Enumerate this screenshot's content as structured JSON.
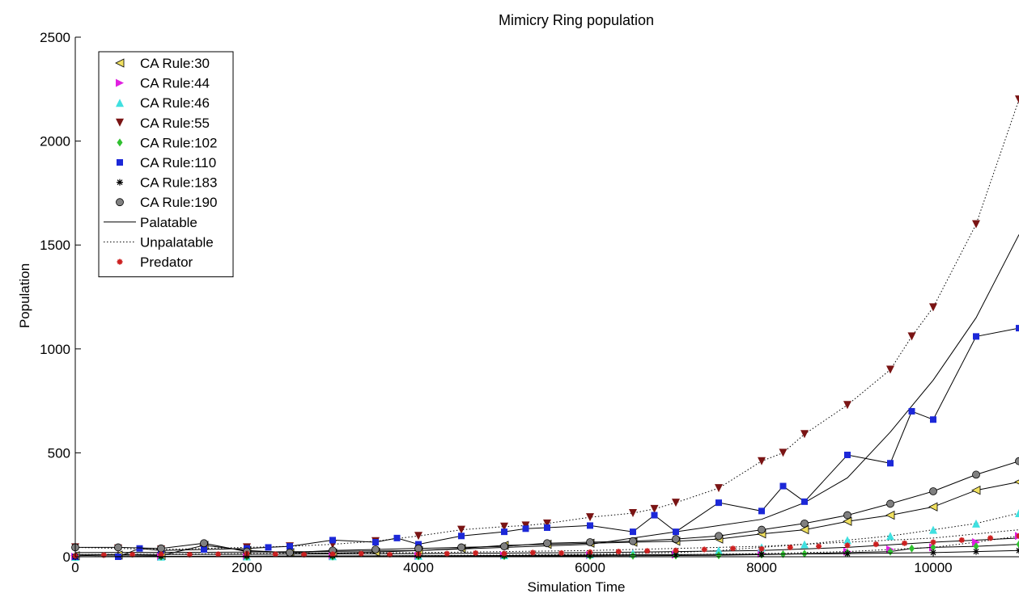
{
  "chart_data": {
    "type": "line",
    "title": "Mimicry Ring population",
    "xlabel": "Simulation Time",
    "ylabel": "Population",
    "xlim": [
      0,
      11000
    ],
    "ylim": [
      0,
      2500
    ],
    "xticks": [
      0,
      2000,
      4000,
      6000,
      8000,
      10000
    ],
    "yticks": [
      0,
      500,
      1000,
      1500,
      2000,
      2500
    ],
    "grid": false,
    "legend_position": "top-left",
    "series": [
      {
        "name": "CA Rule:30",
        "marker": "triangle-left",
        "color": "#f0e060",
        "line": "solid",
        "x": [
          0,
          500,
          1000,
          1500,
          2000,
          2500,
          3000,
          3500,
          4000,
          4500,
          5000,
          5500,
          6000,
          6500,
          7000,
          7500,
          8000,
          8500,
          9000,
          9500,
          10000,
          10500,
          11000
        ],
        "values": [
          5,
          8,
          6,
          55,
          30,
          20,
          18,
          22,
          30,
          40,
          55,
          60,
          65,
          70,
          75,
          85,
          110,
          130,
          170,
          200,
          240,
          320,
          360
        ]
      },
      {
        "name": "CA Rule:44",
        "marker": "triangle-right",
        "color": "#e020e0",
        "line": "dotted",
        "x": [
          0,
          1000,
          2000,
          3000,
          4000,
          5000,
          6000,
          7000,
          8000,
          9000,
          9500,
          10000,
          10500,
          11000
        ],
        "values": [
          0,
          0,
          2,
          3,
          4,
          6,
          8,
          10,
          15,
          25,
          35,
          45,
          70,
          100
        ]
      },
      {
        "name": "CA Rule:46",
        "marker": "triangle-up",
        "color": "#40e0e0",
        "line": "dotted",
        "x": [
          0,
          1000,
          2000,
          3000,
          4000,
          5000,
          6000,
          6500,
          7000,
          7500,
          8000,
          8500,
          9000,
          9500,
          10000,
          10500,
          11000
        ],
        "values": [
          0,
          1,
          2,
          3,
          5,
          8,
          12,
          16,
          20,
          30,
          45,
          60,
          80,
          100,
          130,
          160,
          210
        ]
      },
      {
        "name": "CA Rule:55",
        "marker": "triangle-down",
        "color": "#7a1414",
        "line": "dotted",
        "x": [
          0,
          500,
          1000,
          1500,
          2000,
          2500,
          3000,
          3500,
          4000,
          4500,
          5000,
          5250,
          5500,
          6000,
          6500,
          6750,
          7000,
          7500,
          8000,
          8250,
          8500,
          9000,
          9500,
          9750,
          10000,
          10500,
          11000
        ],
        "values": [
          45,
          40,
          35,
          40,
          45,
          50,
          60,
          75,
          100,
          130,
          145,
          150,
          160,
          190,
          210,
          230,
          260,
          330,
          460,
          500,
          590,
          730,
          900,
          1060,
          1200,
          1600,
          2200
        ]
      },
      {
        "name": "CA Rule:102",
        "marker": "diamond",
        "color": "#30c030",
        "line": "solid",
        "x": [
          0,
          1000,
          2000,
          3000,
          4000,
          5000,
          6000,
          6500,
          7000,
          7500,
          8000,
          8250,
          8500,
          9000,
          9500,
          9750,
          10000,
          10500,
          11000
        ],
        "values": [
          0,
          1,
          0,
          1,
          2,
          3,
          4,
          5,
          6,
          7,
          10,
          12,
          15,
          20,
          25,
          40,
          45,
          50,
          60
        ]
      },
      {
        "name": "CA Rule:110",
        "marker": "square",
        "color": "#1c28d8",
        "line": "solid",
        "x": [
          0,
          500,
          750,
          1000,
          1500,
          2000,
          2250,
          2500,
          3000,
          3500,
          3750,
          4000,
          4500,
          5000,
          5250,
          5500,
          6000,
          6500,
          6750,
          7000,
          7500,
          8000,
          8250,
          8500,
          9000,
          9500,
          9750,
          10000,
          10500,
          11000
        ],
        "values": [
          0,
          0,
          40,
          30,
          35,
          40,
          45,
          50,
          80,
          70,
          90,
          60,
          100,
          120,
          135,
          140,
          150,
          120,
          200,
          120,
          260,
          220,
          340,
          265,
          490,
          450,
          700,
          660,
          1060,
          1100
        ]
      },
      {
        "name": "CA Rule:183",
        "marker": "asterisk",
        "color": "#000000",
        "line": "solid",
        "x": [
          0,
          1000,
          2000,
          3000,
          4000,
          5000,
          6000,
          7000,
          8000,
          9000,
          10000,
          10500,
          11000
        ],
        "values": [
          0,
          2,
          3,
          4,
          5,
          6,
          8,
          10,
          12,
          15,
          20,
          25,
          30
        ]
      },
      {
        "name": "CA Rule:190",
        "marker": "circle",
        "color": "#808080",
        "line": "solid",
        "x": [
          0,
          500,
          1000,
          1500,
          2000,
          2500,
          3000,
          3500,
          4000,
          4500,
          5000,
          5500,
          6000,
          6500,
          7000,
          7500,
          8000,
          8500,
          9000,
          9500,
          10000,
          10500,
          11000
        ],
        "values": [
          45,
          45,
          40,
          65,
          25,
          20,
          30,
          35,
          40,
          45,
          50,
          65,
          70,
          75,
          85,
          100,
          130,
          160,
          200,
          255,
          315,
          395,
          460
        ]
      }
    ],
    "legend": [
      {
        "label": "CA Rule:30",
        "kind": "marker",
        "marker": "triangle-left",
        "color": "#f0e060"
      },
      {
        "label": "CA Rule:44",
        "kind": "marker",
        "marker": "triangle-right",
        "color": "#e020e0"
      },
      {
        "label": "CA Rule:46",
        "kind": "marker",
        "marker": "triangle-up",
        "color": "#40e0e0"
      },
      {
        "label": "CA Rule:55",
        "kind": "marker",
        "marker": "triangle-down",
        "color": "#7a1414"
      },
      {
        "label": "CA Rule:102",
        "kind": "marker",
        "marker": "diamond",
        "color": "#30c030"
      },
      {
        "label": "CA Rule:110",
        "kind": "marker",
        "marker": "square",
        "color": "#1c28d8"
      },
      {
        "label": "CA Rule:183",
        "kind": "marker",
        "marker": "asterisk",
        "color": "#000000"
      },
      {
        "label": "CA Rule:190",
        "kind": "marker",
        "marker": "circle",
        "color": "#808080"
      },
      {
        "label": "Palatable",
        "kind": "line",
        "line": "solid",
        "color": "#000000"
      },
      {
        "label": "Unpalatable",
        "kind": "line",
        "line": "dotted",
        "color": "#000000"
      },
      {
        "label": "Predator",
        "kind": "marker",
        "marker": "star",
        "color": "#cc2020"
      }
    ],
    "predator": {
      "marker": "star",
      "color": "#cc2020",
      "x": [
        0,
        333,
        666,
        1000,
        1333,
        1666,
        2000,
        2333,
        2666,
        3000,
        3333,
        3666,
        4000,
        4333,
        4666,
        5000,
        5333,
        5666,
        6000,
        6333,
        6666,
        7000,
        7333,
        7666,
        8000,
        8333,
        8666,
        9000,
        9333,
        9666,
        10000,
        10333,
        10666,
        11000
      ],
      "values": [
        5,
        8,
        10,
        12,
        10,
        12,
        15,
        12,
        10,
        12,
        15,
        10,
        12,
        15,
        18,
        15,
        20,
        18,
        22,
        25,
        28,
        30,
        35,
        40,
        38,
        45,
        50,
        55,
        60,
        65,
        70,
        80,
        90,
        100
      ]
    },
    "background_lines": [
      {
        "line": "solid",
        "color": "#000000",
        "x": [
          0,
          2000,
          4000,
          6000,
          7000,
          8000,
          8500,
          9000,
          9500,
          10000,
          10500,
          11000
        ],
        "values": [
          20,
          22,
          30,
          60,
          120,
          180,
          260,
          380,
          600,
          850,
          1150,
          1550
        ]
      },
      {
        "line": "dotted",
        "color": "#000000",
        "x": [
          0,
          2000,
          4000,
          6000,
          7000,
          8000,
          9000,
          10000,
          11000
        ],
        "values": [
          10,
          15,
          20,
          30,
          40,
          50,
          70,
          90,
          130
        ]
      },
      {
        "line": "solid",
        "color": "#000000",
        "x": [
          0,
          2000,
          4000,
          6000,
          7000,
          8000,
          9000,
          10000,
          11000
        ],
        "values": [
          10,
          12,
          15,
          20,
          25,
          30,
          45,
          70,
          90
        ]
      }
    ]
  }
}
